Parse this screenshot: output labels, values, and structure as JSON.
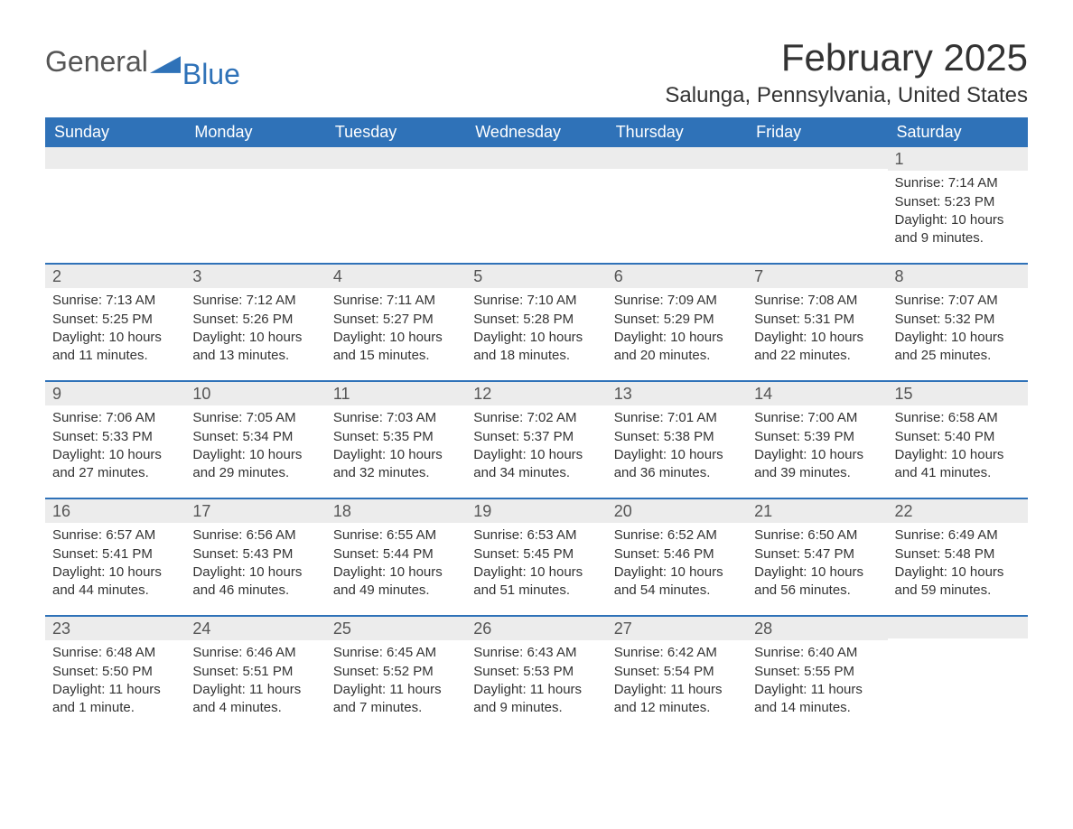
{
  "brand": {
    "part1": "General",
    "part2": "Blue"
  },
  "title": "February 2025",
  "location": "Salunga, Pennsylvania, United States",
  "colors": {
    "header_bg": "#2f72b8",
    "header_text": "#ffffff",
    "daynum_bg": "#ececec",
    "border": "#2f72b8",
    "body_text": "#333333"
  },
  "weekdays": [
    "Sunday",
    "Monday",
    "Tuesday",
    "Wednesday",
    "Thursday",
    "Friday",
    "Saturday"
  ],
  "calendar": {
    "first_weekday_index": 6,
    "days_in_month": 28
  },
  "days": {
    "1": {
      "sunrise": "7:14 AM",
      "sunset": "5:23 PM",
      "daylight": "10 hours and 9 minutes."
    },
    "2": {
      "sunrise": "7:13 AM",
      "sunset": "5:25 PM",
      "daylight": "10 hours and 11 minutes."
    },
    "3": {
      "sunrise": "7:12 AM",
      "sunset": "5:26 PM",
      "daylight": "10 hours and 13 minutes."
    },
    "4": {
      "sunrise": "7:11 AM",
      "sunset": "5:27 PM",
      "daylight": "10 hours and 15 minutes."
    },
    "5": {
      "sunrise": "7:10 AM",
      "sunset": "5:28 PM",
      "daylight": "10 hours and 18 minutes."
    },
    "6": {
      "sunrise": "7:09 AM",
      "sunset": "5:29 PM",
      "daylight": "10 hours and 20 minutes."
    },
    "7": {
      "sunrise": "7:08 AM",
      "sunset": "5:31 PM",
      "daylight": "10 hours and 22 minutes."
    },
    "8": {
      "sunrise": "7:07 AM",
      "sunset": "5:32 PM",
      "daylight": "10 hours and 25 minutes."
    },
    "9": {
      "sunrise": "7:06 AM",
      "sunset": "5:33 PM",
      "daylight": "10 hours and 27 minutes."
    },
    "10": {
      "sunrise": "7:05 AM",
      "sunset": "5:34 PM",
      "daylight": "10 hours and 29 minutes."
    },
    "11": {
      "sunrise": "7:03 AM",
      "sunset": "5:35 PM",
      "daylight": "10 hours and 32 minutes."
    },
    "12": {
      "sunrise": "7:02 AM",
      "sunset": "5:37 PM",
      "daylight": "10 hours and 34 minutes."
    },
    "13": {
      "sunrise": "7:01 AM",
      "sunset": "5:38 PM",
      "daylight": "10 hours and 36 minutes."
    },
    "14": {
      "sunrise": "7:00 AM",
      "sunset": "5:39 PM",
      "daylight": "10 hours and 39 minutes."
    },
    "15": {
      "sunrise": "6:58 AM",
      "sunset": "5:40 PM",
      "daylight": "10 hours and 41 minutes."
    },
    "16": {
      "sunrise": "6:57 AM",
      "sunset": "5:41 PM",
      "daylight": "10 hours and 44 minutes."
    },
    "17": {
      "sunrise": "6:56 AM",
      "sunset": "5:43 PM",
      "daylight": "10 hours and 46 minutes."
    },
    "18": {
      "sunrise": "6:55 AM",
      "sunset": "5:44 PM",
      "daylight": "10 hours and 49 minutes."
    },
    "19": {
      "sunrise": "6:53 AM",
      "sunset": "5:45 PM",
      "daylight": "10 hours and 51 minutes."
    },
    "20": {
      "sunrise": "6:52 AM",
      "sunset": "5:46 PM",
      "daylight": "10 hours and 54 minutes."
    },
    "21": {
      "sunrise": "6:50 AM",
      "sunset": "5:47 PM",
      "daylight": "10 hours and 56 minutes."
    },
    "22": {
      "sunrise": "6:49 AM",
      "sunset": "5:48 PM",
      "daylight": "10 hours and 59 minutes."
    },
    "23": {
      "sunrise": "6:48 AM",
      "sunset": "5:50 PM",
      "daylight": "11 hours and 1 minute."
    },
    "24": {
      "sunrise": "6:46 AM",
      "sunset": "5:51 PM",
      "daylight": "11 hours and 4 minutes."
    },
    "25": {
      "sunrise": "6:45 AM",
      "sunset": "5:52 PM",
      "daylight": "11 hours and 7 minutes."
    },
    "26": {
      "sunrise": "6:43 AM",
      "sunset": "5:53 PM",
      "daylight": "11 hours and 9 minutes."
    },
    "27": {
      "sunrise": "6:42 AM",
      "sunset": "5:54 PM",
      "daylight": "11 hours and 12 minutes."
    },
    "28": {
      "sunrise": "6:40 AM",
      "sunset": "5:55 PM",
      "daylight": "11 hours and 14 minutes."
    }
  },
  "labels": {
    "sunrise": "Sunrise:",
    "sunset": "Sunset:",
    "daylight": "Daylight:"
  }
}
